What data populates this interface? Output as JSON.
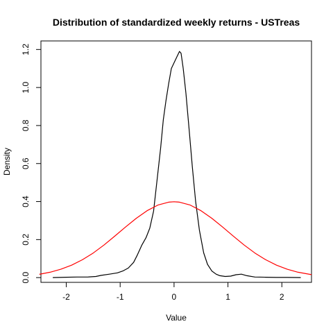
{
  "chart_data": {
    "type": "line",
    "title": "Distribution of standardized weekly returns - USTreas",
    "xlabel": "Value",
    "ylabel": "Density",
    "xlim": [
      -2.47,
      2.55
    ],
    "ylim": [
      -0.025,
      1.245
    ],
    "xticks": [
      -2,
      -1,
      0,
      1,
      2
    ],
    "yticks": [
      0.0,
      0.2,
      0.4,
      0.6,
      0.8,
      1.0,
      1.2
    ],
    "xtick_labels": [
      "-2",
      "-1",
      "0",
      "1",
      "2"
    ],
    "ytick_labels": [
      "0.0",
      "0.2",
      "0.4",
      "0.6",
      "0.8",
      "1.0",
      "1.2"
    ],
    "grid": false,
    "legend": "none",
    "series": [
      {
        "color": "#000000",
        "x": [
          -2.25,
          -2.0,
          -1.8,
          -1.6,
          -1.45,
          -1.35,
          -1.2,
          -1.05,
          -0.95,
          -0.85,
          -0.75,
          -0.68,
          -0.6,
          -0.52,
          -0.45,
          -0.38,
          -0.32,
          -0.25,
          -0.2,
          -0.15,
          -0.1,
          -0.05,
          0.0,
          0.05,
          0.1,
          0.13,
          0.17,
          0.22,
          0.28,
          0.34,
          0.4,
          0.47,
          0.55,
          0.62,
          0.7,
          0.78,
          0.85,
          0.95,
          1.05,
          1.15,
          1.25,
          1.35,
          1.5,
          1.7,
          1.9,
          2.1,
          2.35
        ],
        "y": [
          0.0,
          0.002,
          0.003,
          0.003,
          0.006,
          0.012,
          0.018,
          0.025,
          0.035,
          0.05,
          0.08,
          0.12,
          0.17,
          0.21,
          0.26,
          0.35,
          0.5,
          0.68,
          0.83,
          0.93,
          1.02,
          1.1,
          1.13,
          1.16,
          1.19,
          1.18,
          1.1,
          0.97,
          0.78,
          0.58,
          0.4,
          0.25,
          0.13,
          0.07,
          0.035,
          0.018,
          0.01,
          0.006,
          0.008,
          0.015,
          0.018,
          0.01,
          0.003,
          0.002,
          0.001,
          0.001,
          0.0
        ]
      },
      {
        "color": "#ff0000",
        "x": [
          -2.5,
          -2.3,
          -2.1,
          -1.9,
          -1.7,
          -1.5,
          -1.3,
          -1.1,
          -0.9,
          -0.7,
          -0.5,
          -0.3,
          -0.1,
          0.0,
          0.1,
          0.3,
          0.5,
          0.7,
          0.9,
          1.1,
          1.3,
          1.5,
          1.7,
          1.9,
          2.1,
          2.3,
          2.55
        ],
        "y": [
          0.0175,
          0.0283,
          0.044,
          0.0656,
          0.094,
          0.1295,
          0.1714,
          0.2179,
          0.2661,
          0.3123,
          0.3521,
          0.3814,
          0.397,
          0.3989,
          0.397,
          0.3814,
          0.3521,
          0.3123,
          0.2661,
          0.2179,
          0.1714,
          0.1295,
          0.094,
          0.0656,
          0.044,
          0.0283,
          0.0154
        ]
      }
    ]
  }
}
